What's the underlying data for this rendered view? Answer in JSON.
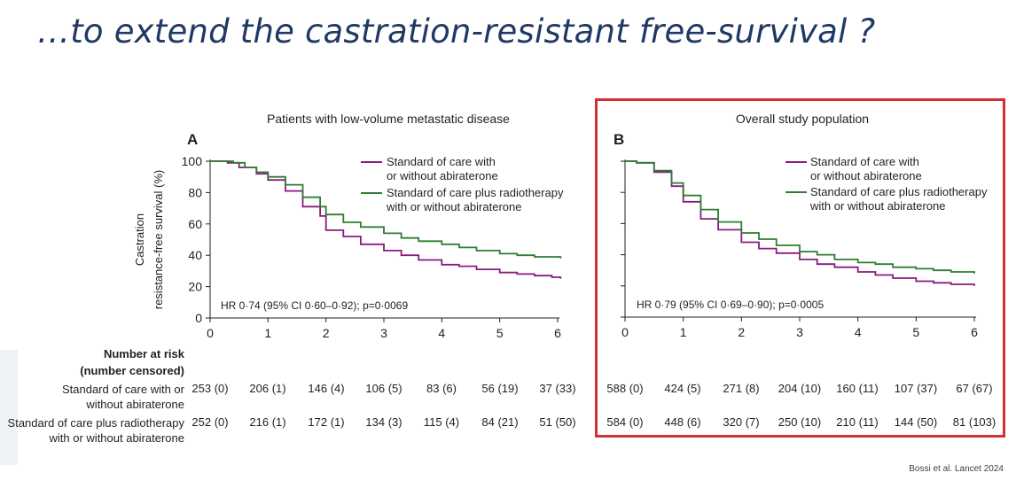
{
  "slide": {
    "title": "…to extend the castration-resistant free-survival ?",
    "citation": "Bossi et al. Lancet 2024"
  },
  "risk_table": {
    "header_line1": "Number at risk",
    "header_line2": "(number censored)",
    "row1_label_line1": "Standard of care with or",
    "row1_label_line2": "without abiraterone",
    "row2_label_line1": "Standard of care plus radiotherapy",
    "row2_label_line2": "with or without abiraterone",
    "panel_a": {
      "row1": [
        "253 (0)",
        "206 (1)",
        "146 (4)",
        "106 (5)",
        "83 (6)",
        "56 (19)",
        "37 (33)"
      ],
      "row2": [
        "252 (0)",
        "216 (1)",
        "172 (1)",
        "134 (3)",
        "115 (4)",
        "84 (21)",
        "51 (50)"
      ]
    },
    "panel_b": {
      "row1": [
        "588 (0)",
        "424 (5)",
        "271 (8)",
        "204 (10)",
        "160 (11)",
        "107 (37)",
        "67 (67)"
      ],
      "row2": [
        "584 (0)",
        "448 (6)",
        "320 (7)",
        "250 (10)",
        "210 (11)",
        "144 (50)",
        "81 (103)"
      ]
    }
  },
  "colors": {
    "soc": "#8b1a7f",
    "rt": "#2e7d32",
    "title": "#1f3864",
    "highlight": "#d32f2f"
  },
  "chart_data": [
    {
      "type": "line",
      "panel_letter": "A",
      "title": "Patients with low-volume metastatic disease",
      "ylabel_line1": "Castration",
      "ylabel_line2": "resistance-free survival (%)",
      "xlabel": "",
      "xlim": [
        0,
        6
      ],
      "ylim": [
        0,
        100
      ],
      "x_ticks": [
        "0",
        "1",
        "2",
        "3",
        "4",
        "5",
        "6"
      ],
      "y_ticks": [
        "0",
        "20",
        "40",
        "60",
        "80",
        "100"
      ],
      "y_ticks_shown": true,
      "annotation": "HR 0·74 (95% CI 0·60–0·92); p=0·0069",
      "legend_position": "top-right",
      "series": [
        {
          "name": "Standard of care with or without abiraterone",
          "legend_line1": "Standard of care with",
          "legend_line2": "or without abiraterone",
          "color": "#8b1a7f",
          "x": [
            0,
            0.3,
            0.5,
            0.8,
            1.0,
            1.3,
            1.6,
            1.9,
            2.0,
            2.3,
            2.6,
            3.0,
            3.3,
            3.6,
            4.0,
            4.3,
            4.6,
            5.0,
            5.3,
            5.6,
            5.9,
            6.05
          ],
          "y": [
            100,
            99,
            96,
            92,
            88,
            81,
            71,
            65,
            56,
            52,
            47,
            43,
            40,
            37,
            34,
            33,
            31,
            29,
            28,
            27,
            26,
            25
          ]
        },
        {
          "name": "Standard of care plus radiotherapy with or without abiraterone",
          "legend_line1": "Standard of care plus radiotherapy",
          "legend_line2": "with or without abiraterone",
          "color": "#2e7d32",
          "x": [
            0,
            0.4,
            0.6,
            0.8,
            1.0,
            1.3,
            1.6,
            1.9,
            2.0,
            2.3,
            2.6,
            3.0,
            3.3,
            3.6,
            4.0,
            4.3,
            4.6,
            5.0,
            5.3,
            5.6,
            5.9,
            6.05
          ],
          "y": [
            100,
            99,
            96,
            93,
            90,
            85,
            77,
            71,
            66,
            61,
            58,
            54,
            51,
            49,
            47,
            45,
            43,
            41,
            40,
            39,
            39,
            38
          ]
        }
      ]
    },
    {
      "type": "line",
      "panel_letter": "B",
      "title": "Overall study population",
      "ylabel_line1": "",
      "ylabel_line2": "",
      "xlabel": "",
      "xlim": [
        0,
        6
      ],
      "ylim": [
        0,
        100
      ],
      "x_ticks": [
        "0",
        "1",
        "2",
        "3",
        "4",
        "5",
        "6"
      ],
      "y_ticks": [],
      "y_ticks_shown": false,
      "annotation": "HR 0·79 (95% CI 0·69–0·90); p=0·0005",
      "legend_position": "top-right",
      "series": [
        {
          "name": "Standard of care with or without abiraterone",
          "legend_line1": "Standard of care with",
          "legend_line2": "or without abiraterone",
          "color": "#8b1a7f",
          "x": [
            0,
            0.2,
            0.5,
            0.8,
            1.0,
            1.3,
            1.6,
            2.0,
            2.3,
            2.6,
            3.0,
            3.3,
            3.6,
            4.0,
            4.3,
            4.6,
            5.0,
            5.3,
            5.6,
            6.0
          ],
          "y": [
            100,
            99,
            93,
            84,
            74,
            63,
            56,
            48,
            44,
            41,
            37,
            34,
            32,
            29,
            27,
            25,
            23,
            22,
            21,
            20
          ]
        },
        {
          "name": "Standard of care plus radiotherapy with or without abiraterone",
          "legend_line1": "Standard of care plus radiotherapy",
          "legend_line2": "with or without abiraterone",
          "color": "#2e7d32",
          "x": [
            0,
            0.2,
            0.5,
            0.8,
            1.0,
            1.3,
            1.6,
            2.0,
            2.3,
            2.6,
            3.0,
            3.3,
            3.6,
            4.0,
            4.3,
            4.6,
            5.0,
            5.3,
            5.6,
            6.0
          ],
          "y": [
            100,
            99,
            94,
            86,
            78,
            69,
            61,
            54,
            50,
            46,
            42,
            40,
            37,
            35,
            34,
            32,
            31,
            30,
            29,
            28
          ]
        }
      ]
    }
  ]
}
